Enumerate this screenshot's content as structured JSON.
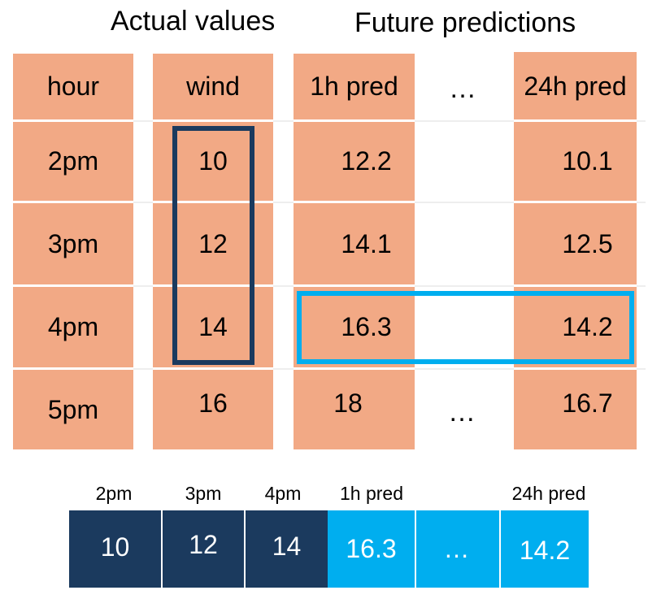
{
  "headings": {
    "actual": "Actual values",
    "future": "Future predictions"
  },
  "table": {
    "headers": [
      "hour",
      "wind",
      "1h pred",
      "…",
      "24h pred"
    ],
    "rows": [
      {
        "hour": "2pm",
        "wind": "10",
        "pred_1h": "12.2",
        "pred_24h": "10.1"
      },
      {
        "hour": "3pm",
        "wind": "12",
        "pred_1h": "14.1",
        "pred_24h": "12.5"
      },
      {
        "hour": "4pm",
        "wind": "14",
        "pred_1h": "16.3",
        "pred_24h": "14.2"
      },
      {
        "hour": "5pm",
        "wind": "16",
        "pred_1h": "18",
        "pred_24h": "16.7"
      }
    ],
    "ellipsis_bottom": "…"
  },
  "sequence": {
    "labels": [
      "2pm",
      "3pm",
      "4pm",
      "1h pred",
      "24h pred"
    ],
    "values": [
      "10",
      "12",
      "14",
      "16.3",
      "…",
      "14.2"
    ]
  },
  "colors": {
    "cell_fill": "#f2a985",
    "actual_highlight": "#1b3a5e",
    "prediction_highlight": "#00aeef"
  }
}
